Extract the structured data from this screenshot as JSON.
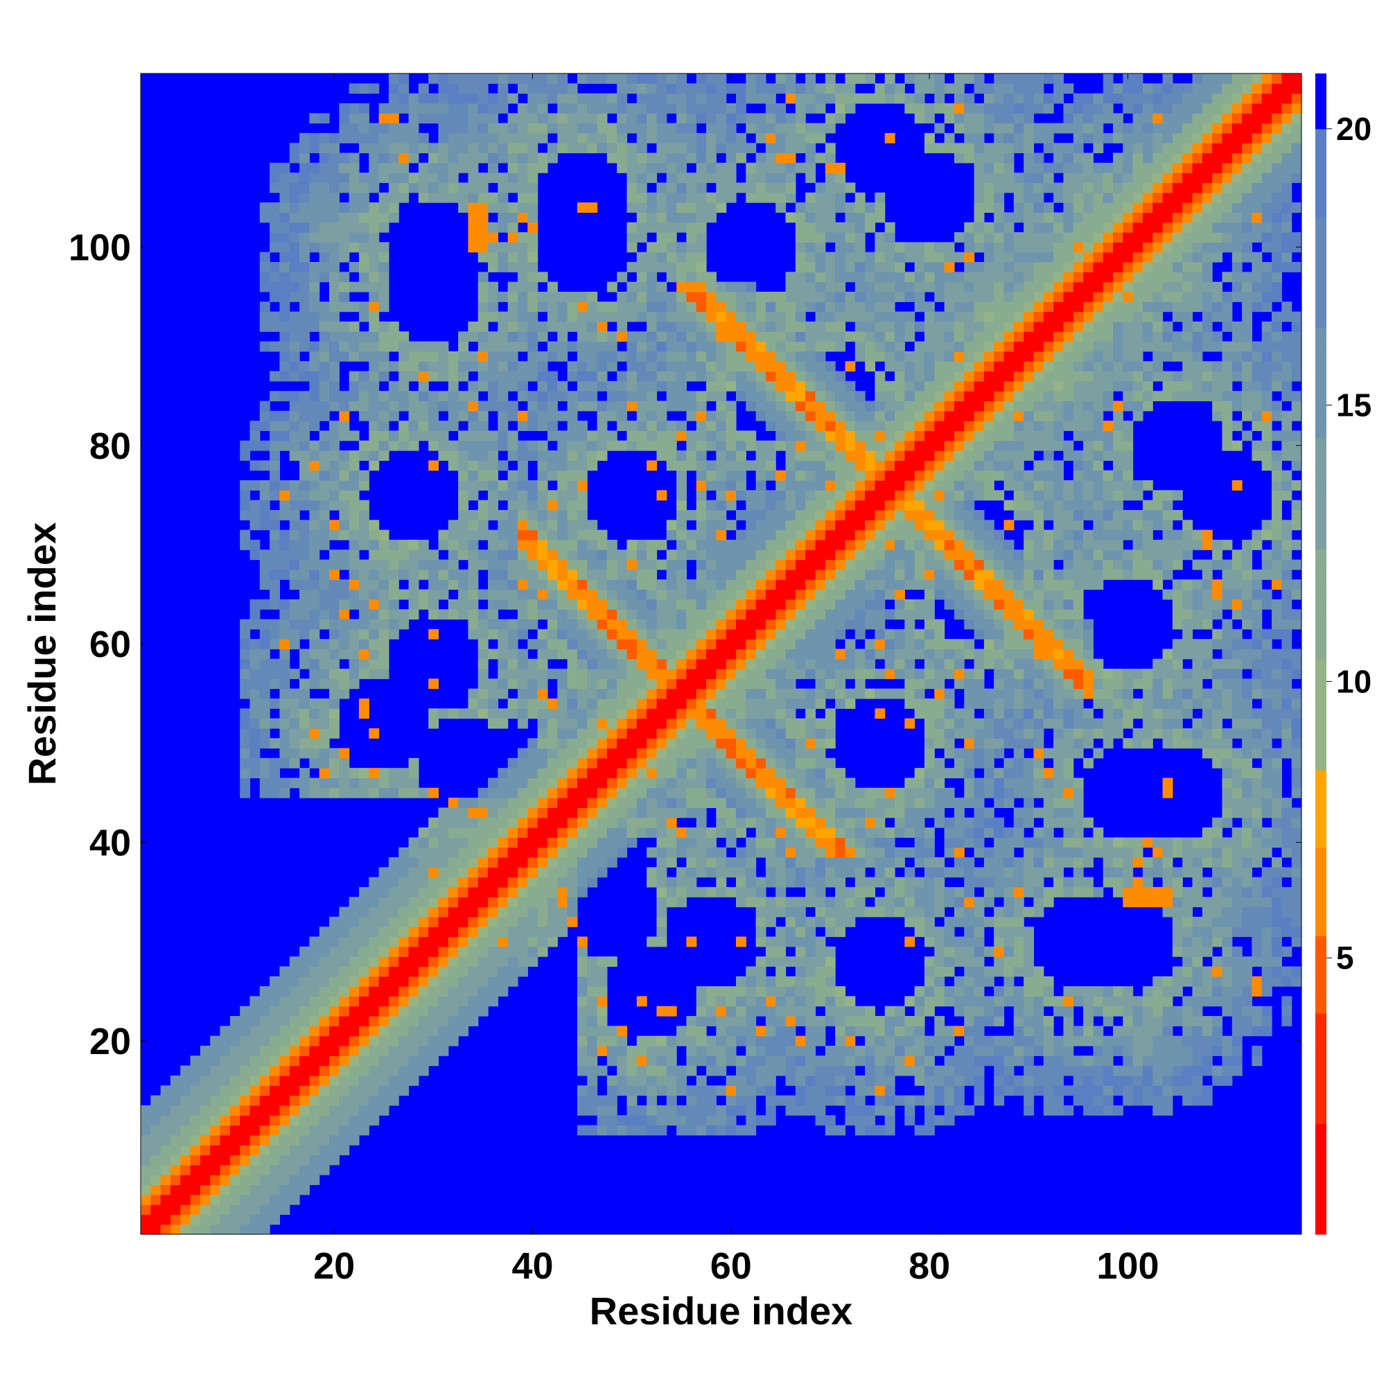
{
  "chart_data": {
    "type": "heatmap",
    "description_of_values": "pairwise residue distance matrix",
    "xlabel": "Residue index",
    "ylabel": "Residue index",
    "xlim": [
      1,
      117
    ],
    "ylim": [
      1,
      117
    ],
    "n_residues": 117,
    "x_ticks": [
      20,
      40,
      60,
      80,
      100
    ],
    "y_ticks": [
      20,
      40,
      60,
      80,
      100
    ],
    "colorbar": {
      "ticks": [
        5,
        10,
        15,
        20
      ],
      "range": [
        0,
        21
      ],
      "colors": [
        "#ff0000",
        "#ff7a00",
        "#ffa500",
        "#8fb08a",
        "#6a8fb8",
        "#0000ff"
      ]
    },
    "structure": {
      "diagonal_band_width": 1.5,
      "cap_value": 21,
      "features": [
        {
          "kind": "diagonal",
          "from": [
            1,
            1
          ],
          "to": [
            117,
            117
          ],
          "value": 1
        },
        {
          "kind": "antidiagonal",
          "from": [
            55,
            55
          ],
          "to": [
            39,
            74
          ],
          "value": 5
        },
        {
          "kind": "antidiagonal",
          "from": [
            55,
            55
          ],
          "to": [
            74,
            39
          ],
          "value": 5
        },
        {
          "kind": "antidiagonal",
          "from": [
            76,
            76
          ],
          "to": [
            55,
            96
          ],
          "value": 5
        },
        {
          "kind": "antidiagonal",
          "from": [
            76,
            76
          ],
          "to": [
            96,
            55
          ],
          "value": 5
        },
        {
          "kind": "patch",
          "center": [
            35,
            102
          ],
          "value": 6
        },
        {
          "kind": "patch",
          "center": [
            101,
            35
          ],
          "value": 6
        }
      ]
    }
  }
}
